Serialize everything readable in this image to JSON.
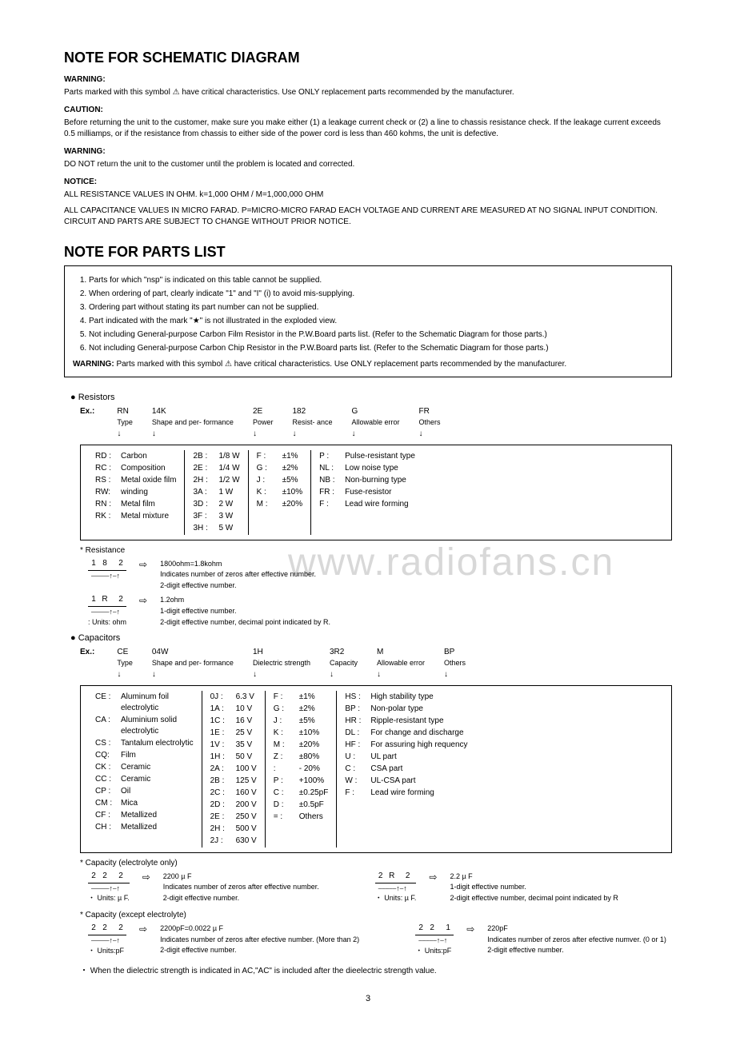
{
  "header1": {
    "title": "NOTE FOR SCHEMATIC DIAGRAM",
    "warn1_label": "WARNING:",
    "warn1_text": "Parts marked with this symbol ⚠ have critical characteristics. Use ONLY replacement parts recommended by the manufacturer.",
    "caution_label": "CAUTION:",
    "caution_text": "Before returning the unit to the customer, make sure you make either (1) a leakage current check or (2) a line to chassis resistance check. If the leakage current exceeds 0.5 milliamps, or if the resistance from chassis to either side of the power cord is less than 460 kohms, the unit is defective.",
    "warn2_label": "WARNING:",
    "warn2_text": "DO NOT return the unit to the customer until the problem is located and corrected.",
    "notice_label": "NOTICE:",
    "notice_line1": "ALL RESISTANCE VALUES IN OHM. k=1,000 OHM / M=1,000,000 OHM",
    "notice_line2": "ALL CAPACITANCE VALUES IN MICRO FARAD. P=MICRO-MICRO FARAD EACH VOLTAGE AND CURRENT ARE MEASURED AT NO SIGNAL INPUT CONDITION. CIRCUIT AND PARTS ARE SUBJECT TO CHANGE WITHOUT PRIOR NOTICE."
  },
  "header2": {
    "title": "NOTE FOR PARTS LIST",
    "items": [
      "Parts for which \"nsp\" is indicated on this table cannot be supplied.",
      "When ordering of part, clearly indicate \"1\" and \"I\" (i) to avoid mis-supplying.",
      "Ordering part without stating its part number can not be supplied.",
      "Part indicated with the mark \"★\" is not illustrated in the exploded view.",
      "Not including General-purpose Carbon Film Resistor in the P.W.Board parts list. (Refer to the Schematic Diagram for those parts.)",
      "Not including General-purpose Carbon Chip Resistor in the P.W.Board parts list. (Refer to the Schematic Diagram for those parts.)"
    ],
    "warn": "WARNING:",
    "warn_text": "Parts marked with this symbol ⚠ have critical characteristics. Use ONLY replacement parts recommended by the manufacturer."
  },
  "resistors": {
    "heading": "Resistors",
    "ex_label": "Ex.:",
    "cols": [
      {
        "val": "RN",
        "lbl": "Type"
      },
      {
        "val": "14K",
        "lbl": "Shape\nand per-\nformance"
      },
      {
        "val": "2E",
        "lbl": "Power"
      },
      {
        "val": "182",
        "lbl": "Resist-\nance"
      },
      {
        "val": "G",
        "lbl": "Allowable\nerror"
      },
      {
        "val": "FR",
        "lbl": "Others"
      }
    ],
    "type_codes": [
      [
        "RD :",
        "Carbon"
      ],
      [
        "RC :",
        "Composition"
      ],
      [
        "RS :",
        "Metal oxide film"
      ],
      [
        "RW:",
        "winding"
      ],
      [
        "RN :",
        "Metal film"
      ],
      [
        "RK :",
        "Metal mixture"
      ]
    ],
    "power_codes": [
      [
        "2B :",
        "1/8 W"
      ],
      [
        "2E :",
        "1/4 W"
      ],
      [
        "2H :",
        "1/2 W"
      ],
      [
        "3A :",
        "1   W"
      ],
      [
        "3D :",
        "2   W"
      ],
      [
        "3F :",
        "3   W"
      ],
      [
        "3H :",
        "5   W"
      ]
    ],
    "tol_codes": [
      [
        "F  :",
        "±1%"
      ],
      [
        "G  :",
        "±2%"
      ],
      [
        "J  :",
        "±5%"
      ],
      [
        "K  :",
        "±10%"
      ],
      [
        "M  :",
        "±20%"
      ]
    ],
    "other_codes": [
      [
        "P  :",
        "Pulse-resistant type"
      ],
      [
        "NL :",
        "Low noise type"
      ],
      [
        "NB :",
        "Non-burning type"
      ],
      [
        "FR :",
        "Fuse-resistor"
      ],
      [
        "F  :",
        "Lead wire forming"
      ]
    ],
    "star_label": "*   Resistance",
    "ex1_digits": [
      "1",
      "8",
      "2"
    ],
    "ex1_result": "1800ohm=1.8kohm",
    "ex1_l1": "Indicates number of zeros after effective number.",
    "ex1_l2": "2-digit effective number.",
    "ex2_digits": [
      "1",
      "R",
      "2"
    ],
    "ex2_result": "1.2ohm",
    "ex2_l1": "1-digit effective number.",
    "ex2_l2": "2-digit effective number, decimal point indicated by R.",
    "ex2_units": ": Units: ohm"
  },
  "capacitors": {
    "heading": "Capacitors",
    "ex_label": "Ex.:",
    "cols": [
      {
        "val": "CE",
        "lbl": "Type"
      },
      {
        "val": "04W",
        "lbl": "Shape\nand per-\nformance"
      },
      {
        "val": "1H",
        "lbl": "Dielectric\nstrength"
      },
      {
        "val": "3R2",
        "lbl": "Capacity"
      },
      {
        "val": "M",
        "lbl": "Allowable\nerror"
      },
      {
        "val": "BP",
        "lbl": "Others"
      }
    ],
    "type_codes": [
      [
        "CE :",
        "Aluminum foil\nelectrolytic"
      ],
      [
        "CA :",
        "Aluminium solid\nelectrolytic"
      ],
      [
        "CS :",
        "Tantalum electrolytic"
      ],
      [
        "CQ:",
        "Film"
      ],
      [
        "CK :",
        "Ceramic"
      ],
      [
        "CC :",
        "Ceramic"
      ],
      [
        "CP :",
        "Oil"
      ],
      [
        "CM :",
        "Mica"
      ],
      [
        "CF :",
        "Metallized"
      ],
      [
        "CH :",
        "Metallized"
      ]
    ],
    "volt_codes": [
      [
        "0J  :",
        "6.3 V"
      ],
      [
        "1A :",
        "10  V"
      ],
      [
        "1C :",
        "16  V"
      ],
      [
        "1E :",
        "25  V"
      ],
      [
        "1V :",
        "35  V"
      ],
      [
        "1H :",
        "50  V"
      ],
      [
        "2A :",
        "100 V"
      ],
      [
        "2B :",
        "125 V"
      ],
      [
        "2C :",
        "160 V"
      ],
      [
        "2D :",
        "200 V"
      ],
      [
        "2E :",
        "250 V"
      ],
      [
        "2H :",
        "500 V"
      ],
      [
        "2J  :",
        "630 V"
      ]
    ],
    "tol_codes": [
      [
        "F  :",
        "±1%"
      ],
      [
        "G  :",
        "±2%"
      ],
      [
        "J  :",
        "±5%"
      ],
      [
        "K  :",
        "±10%"
      ],
      [
        "M  :",
        "±20%"
      ],
      [
        "Z  :",
        "±80%"
      ],
      [
        "   :",
        "- 20%"
      ],
      [
        "P  :",
        "+100%"
      ],
      [
        "C  :",
        "±0.25pF"
      ],
      [
        "D  :",
        "±0.5pF"
      ],
      [
        "=  :",
        "Others"
      ]
    ],
    "other_codes": [
      [
        "HS :",
        "High stability type"
      ],
      [
        "BP :",
        "Non-polar type"
      ],
      [
        "HR :",
        "Ripple-resistant type"
      ],
      [
        "DL :",
        "For change and discharge"
      ],
      [
        "HF :",
        "For assuring high requency"
      ],
      [
        "U   :",
        "UL part"
      ],
      [
        "C   :",
        "CSA part"
      ],
      [
        "W  :",
        "UL-CSA part"
      ],
      [
        "F   :",
        "Lead wire forming"
      ]
    ],
    "star1": "*   Capacity (electrolyte only)",
    "e1a_digits": [
      "2",
      "2",
      "2"
    ],
    "e1a_result": "2200 µ F",
    "e1a_l1": "Indicates number of zeros after effective number.",
    "e1a_l2": "2-digit effective number.",
    "e1a_units": "・ Units: µ F.",
    "e1b_digits": [
      "2",
      "R",
      "2"
    ],
    "e1b_result": "2.2 µ F",
    "e1b_l1": "1-digit effective number.",
    "e1b_l2": "2-digit effective number, decimal point indicated by R",
    "e1b_units": "・ Units: µ F.",
    "star2": "*   Capacity (except electrolyte)",
    "e2a_digits": [
      "2",
      "2",
      "2"
    ],
    "e2a_result": "2200pF=0.0022 µ F",
    "e2a_l1": "Indicates number of zeros after efective number. (More than 2)",
    "e2a_l2": "2-digit effective number.",
    "e2a_units": "・ Units:pF",
    "e2b_digits": [
      "2",
      "2",
      "1"
    ],
    "e2b_result": "220pF",
    "e2b_l1": "Indicates number of zeros after efective numver. (0 or 1)",
    "e2b_l2": "2-digit effective number.",
    "e2b_units": "・ Units:pF",
    "footnote": "・  When the dielectric strength is indicated in AC,\"AC\" is included after the dieelectric strength value."
  },
  "watermark": "www.radiofans.cn",
  "page": "3"
}
